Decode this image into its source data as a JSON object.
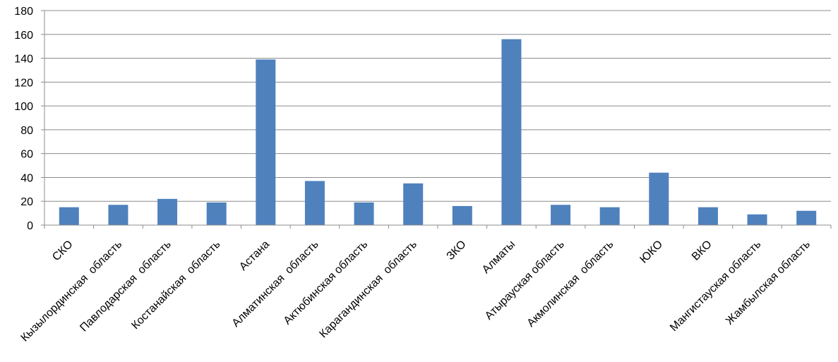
{
  "chart_data": {
    "type": "bar",
    "categories": [
      "СКО",
      "Кызылординская  область",
      "Павлодарская  область",
      "Костанайская  область",
      "Астана",
      "Алматинская  область",
      "Актюбинская область",
      "Карагандинская  область",
      "ЗКО",
      "Алматы",
      "Атырауская область",
      "Акмолинская  область",
      "ЮКО",
      "ВКО",
      "Мангистауская область",
      "Жамбылская область"
    ],
    "values": [
      15,
      17,
      22,
      19,
      139,
      37,
      19,
      35,
      16,
      156,
      17,
      15,
      44,
      15,
      9,
      12
    ],
    "yticks": [
      "0",
      "20",
      "40",
      "60",
      "80",
      "100",
      "120",
      "140",
      "160",
      "180"
    ],
    "ylim": [
      0,
      180
    ],
    "grid": true,
    "legend": "none",
    "bar_color": "#4F81BD",
    "grid_color": "#8C8C8C",
    "axis_color": "#8C8C8C"
  }
}
